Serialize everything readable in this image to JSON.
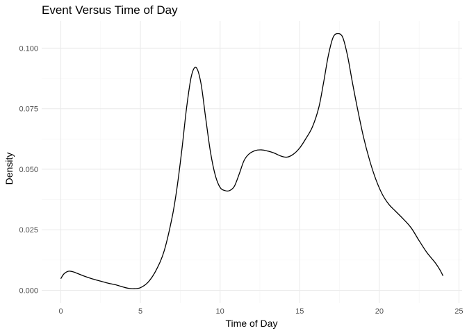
{
  "chart_data": {
    "type": "line",
    "title": "Event Versus Time of Day",
    "xlabel": "Time of Day",
    "ylabel": "Density",
    "xlim": [
      -1.2,
      25.2
    ],
    "ylim": [
      -0.0053,
      0.1113
    ],
    "x_ticks": [
      0,
      5,
      10,
      15,
      20,
      25
    ],
    "x_tick_labels": [
      "0",
      "5",
      "10",
      "15",
      "20",
      "25"
    ],
    "y_ticks": [
      0.0,
      0.025,
      0.05,
      0.075,
      0.1
    ],
    "y_tick_labels": [
      "0.000",
      "0.025",
      "0.050",
      "0.075",
      "0.100"
    ],
    "grid": true,
    "legend": "none",
    "series": [
      {
        "color": "#000000",
        "x": [
          0.0,
          0.2,
          0.5,
          0.8,
          1.0,
          1.5,
          2.0,
          2.5,
          3.0,
          3.5,
          4.0,
          4.3,
          4.6,
          5.0,
          5.5,
          6.0,
          6.5,
          7.0,
          7.3,
          7.6,
          7.9,
          8.2,
          8.5,
          8.8,
          9.1,
          9.4,
          9.7,
          10.0,
          10.3,
          10.6,
          10.9,
          11.2,
          11.5,
          11.8,
          12.2,
          12.6,
          13.0,
          13.4,
          13.8,
          14.2,
          14.6,
          15.0,
          15.4,
          15.8,
          16.2,
          16.5,
          16.8,
          17.1,
          17.4,
          17.7,
          18.0,
          18.3,
          18.6,
          19.0,
          19.4,
          19.8,
          20.2,
          20.6,
          21.0,
          21.5,
          22.0,
          22.5,
          23.0,
          23.5,
          23.8,
          24.0
        ],
        "y": [
          0.0048,
          0.0068,
          0.0079,
          0.0076,
          0.0071,
          0.0058,
          0.0047,
          0.0038,
          0.0029,
          0.0022,
          0.0012,
          0.0008,
          0.0007,
          0.0011,
          0.0035,
          0.0085,
          0.0165,
          0.0305,
          0.0425,
          0.058,
          0.0755,
          0.0885,
          0.092,
          0.0855,
          0.071,
          0.057,
          0.0475,
          0.0425,
          0.0412,
          0.0412,
          0.043,
          0.048,
          0.0535,
          0.0562,
          0.0577,
          0.058,
          0.0575,
          0.0567,
          0.0555,
          0.055,
          0.0562,
          0.0588,
          0.0628,
          0.0675,
          0.0755,
          0.0858,
          0.097,
          0.1045,
          0.106,
          0.1045,
          0.097,
          0.0862,
          0.076,
          0.0635,
          0.0535,
          0.0455,
          0.0395,
          0.0355,
          0.0328,
          0.0295,
          0.0258,
          0.0205,
          0.0155,
          0.0115,
          0.0085,
          0.006
        ]
      }
    ]
  }
}
